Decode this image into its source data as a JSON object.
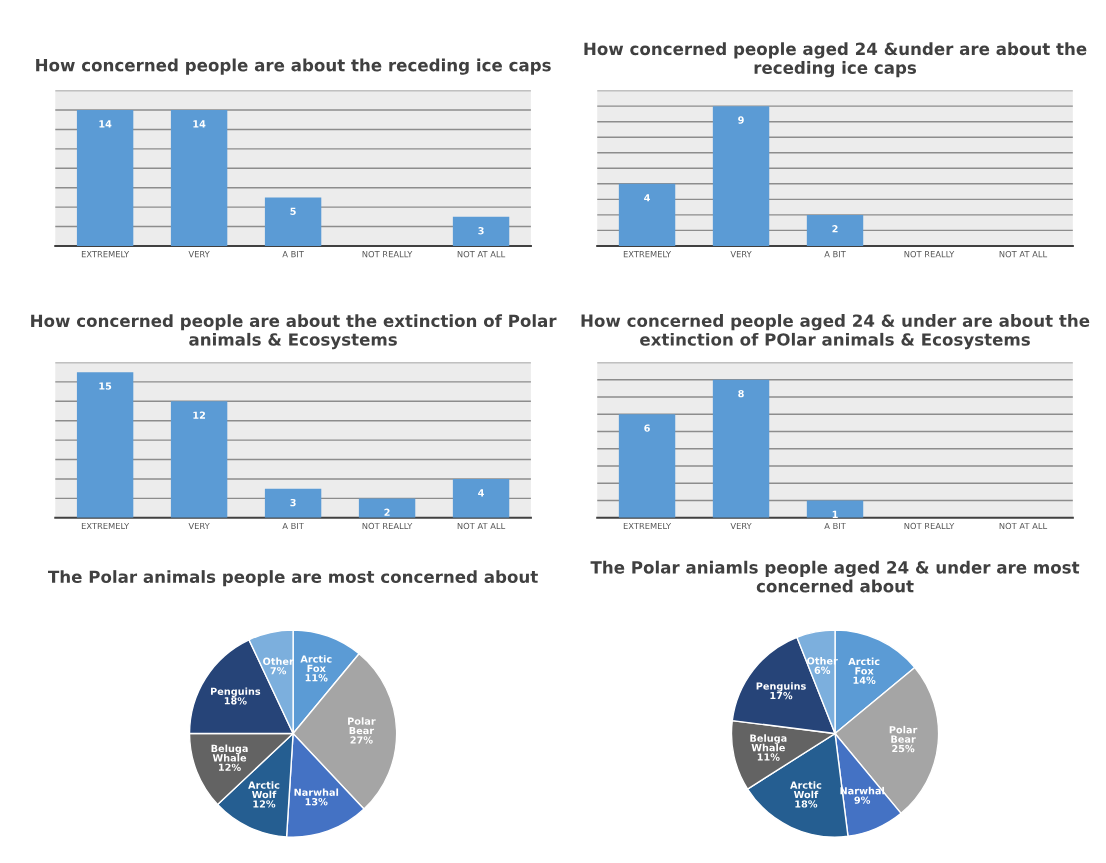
{
  "chart_data": [
    {
      "type": "bar",
      "title": "How concerned people are about the receding ice caps",
      "categories": [
        "EXTREMELY",
        "VERY",
        "A BIT",
        "NOT REALLY",
        "NOT AT ALL"
      ],
      "values": [
        14,
        14,
        5,
        0,
        3
      ],
      "color": "#5b9bd5",
      "ylim": [
        0,
        16
      ],
      "yticks": [
        {
          "value": 0,
          "label": null
        },
        {
          "value": 2,
          "label": null
        },
        {
          "value": 4,
          "label": null
        },
        {
          "value": 6,
          "label": null
        },
        {
          "value": 8,
          "label": null
        },
        {
          "value": 10,
          "label": null
        },
        {
          "value": 12,
          "label": null
        },
        {
          "value": 14,
          "label": null
        },
        {
          "value": 16,
          "label": null
        }
      ],
      "tick_labels": "x",
      "grid": "y",
      "data_labels": true
    },
    {
      "type": "bar",
      "title": "How concerned people aged 24 &under are about the receding ice caps",
      "categories": [
        "EXTREMELY",
        "VERY",
        "A BIT",
        "NOT REALLY",
        "NOT AT ALL"
      ],
      "values": [
        4,
        9,
        2,
        0,
        0
      ],
      "color": "#5b9bd5",
      "ylim": [
        0,
        10
      ],
      "yticks": [
        {
          "value": 0,
          "label": null
        },
        {
          "value": 1,
          "label": null
        },
        {
          "value": 2,
          "label": null
        },
        {
          "value": 3,
          "label": null
        },
        {
          "value": 4,
          "label": null
        },
        {
          "value": 5,
          "label": null
        },
        {
          "value": 6,
          "label": null
        },
        {
          "value": 7,
          "label": null
        },
        {
          "value": 8,
          "label": null
        },
        {
          "value": 9,
          "label": null
        },
        {
          "value": 10,
          "label": null
        }
      ],
      "tick_labels": "x",
      "grid": "y",
      "data_labels": true
    },
    {
      "type": "bar",
      "title": "How concerned people are about the extinction of Polar animals & Ecosystems",
      "categories": [
        "EXTREMELY",
        "VERY",
        "A BIT",
        "NOT REALLY",
        "NOT AT ALL"
      ],
      "values": [
        15,
        12,
        3,
        2,
        4
      ],
      "color": "#5b9bd5",
      "ylim": [
        0,
        16
      ],
      "yticks": [
        {
          "value": 0,
          "label": null
        },
        {
          "value": 2,
          "label": null
        },
        {
          "value": 4,
          "label": null
        },
        {
          "value": 6,
          "label": null
        },
        {
          "value": 8,
          "label": null
        },
        {
          "value": 10,
          "label": null
        },
        {
          "value": 12,
          "label": null
        },
        {
          "value": 14,
          "label": null
        },
        {
          "value": 16,
          "label": null
        }
      ],
      "tick_labels": "x",
      "grid": "y",
      "data_labels": true
    },
    {
      "type": "bar",
      "title": "How concerned people aged 24 & under are about the extinction of POlar animals & Ecosystems",
      "categories": [
        "EXTREMELY",
        "VERY",
        "A BIT",
        "NOT REALLY",
        "NOT AT ALL"
      ],
      "values": [
        6,
        8,
        1,
        0,
        0
      ],
      "color": "#5b9bd5",
      "ylim": [
        0,
        9
      ],
      "yticks": [
        {
          "value": 0,
          "label": null
        },
        {
          "value": 1,
          "label": null
        },
        {
          "value": 2,
          "label": null
        },
        {
          "value": 3,
          "label": null
        },
        {
          "value": 4,
          "label": null
        },
        {
          "value": 5,
          "label": null
        },
        {
          "value": 6,
          "label": null
        },
        {
          "value": 7,
          "label": null
        },
        {
          "value": 8,
          "label": null
        },
        {
          "value": 9,
          "label": null
        }
      ],
      "tick_labels": "x",
      "grid": "y",
      "data_labels": true
    },
    {
      "type": "pie",
      "title": "The Polar animals people are most concerned about",
      "categories": [
        "Arctic Fox",
        "Polar Bear",
        "Narwhal",
        "Arctic Wolf",
        "Beluga Whale",
        "Penguins",
        "Other"
      ],
      "values": [
        11,
        27,
        13,
        12,
        12,
        18,
        7
      ],
      "value_labels": [
        "11%",
        "27%",
        "13%",
        "12%",
        "12%",
        "18%",
        "7%"
      ],
      "colors": [
        "#5b9bd5",
        "#a5a5a5",
        "#4472c4",
        "#255e91",
        "#636363",
        "#264478",
        "#7cafdd"
      ]
    },
    {
      "type": "pie",
      "title": "The Polar aniamls people aged 24 & under are most concerned about",
      "categories": [
        "Arctic Fox",
        "Polar Bear",
        "Narwhal",
        "Arctic Wolf",
        "Beluga Whale",
        "Penguins",
        "Other"
      ],
      "values": [
        14,
        25,
        9,
        18,
        11,
        17,
        6
      ],
      "value_labels": [
        "14%",
        "25%",
        "9%",
        "18%",
        "11%",
        "17%",
        "6%"
      ],
      "colors": [
        "#5b9bd5",
        "#a5a5a5",
        "#4472c4",
        "#255e91",
        "#636363",
        "#264478",
        "#7cafdd"
      ]
    }
  ]
}
